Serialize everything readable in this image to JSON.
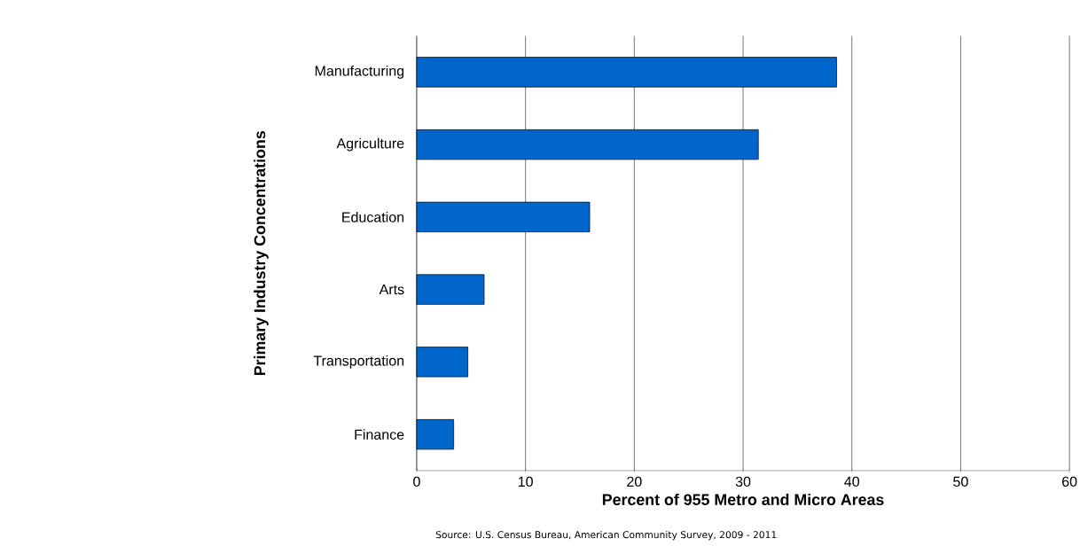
{
  "chart_data": {
    "type": "bar",
    "orientation": "horizontal",
    "xlabel": "Percent of 955 Metro and Micro Areas",
    "ylabel": "Primary Industry Concentrations",
    "categories": [
      "Manufacturing",
      "Agriculture",
      "Education",
      "Arts",
      "Transportation",
      "Finance"
    ],
    "values": [
      38.6,
      31.4,
      15.9,
      6.2,
      4.7,
      3.4
    ],
    "color": "#0066cc",
    "xlim": [
      0,
      60
    ],
    "xticks": [
      0,
      10,
      20,
      30,
      40,
      50,
      60
    ],
    "grid": "x",
    "annotations": [
      "Source: U.S. Census Bureau, American Community Survey, 2009 - 2011"
    ]
  }
}
